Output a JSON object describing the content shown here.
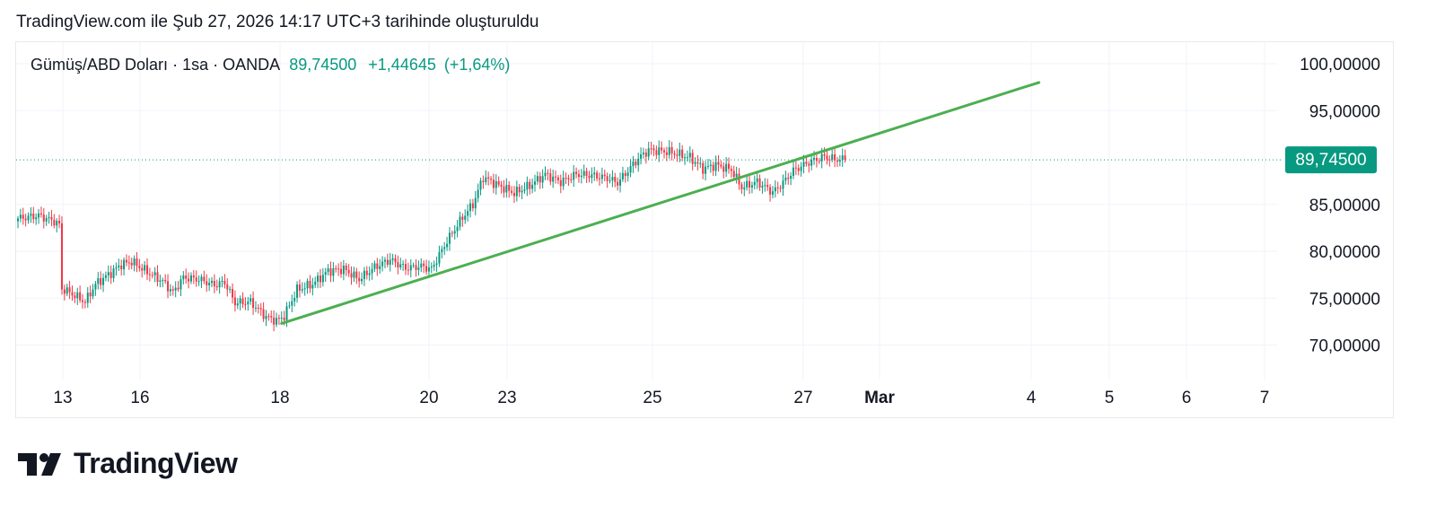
{
  "header": {
    "created_text": "TradingView.com ile Şub 27, 2026 14:17 UTC+3 tarihinde oluşturuldu"
  },
  "symbol": {
    "name": "Gümüş/ABD Doları",
    "interval": "1sa",
    "source": "OANDA",
    "separator": "·",
    "last_price": "89,74500",
    "change": "+1,44645",
    "change_percent": "(+1,64%)"
  },
  "footer": {
    "brand": "TradingView"
  },
  "colors": {
    "up": "#089981",
    "down": "#f23645",
    "trendline": "#4caf50",
    "price_line": "#089981"
  },
  "chart_data": {
    "type": "candlestick",
    "title": "Gümüş/ABD Doları · 1sa · OANDA",
    "x_ticks": [
      "13",
      "16",
      "18",
      "20",
      "23",
      "25",
      "27",
      "Mar",
      "4",
      "5",
      "6",
      "7"
    ],
    "y_ticks": [
      "100,00000",
      "95,00000",
      "85,00000",
      "80,00000",
      "75,00000",
      "70,00000"
    ],
    "ylim": [
      67.5,
      102.5
    ],
    "current_price": 89.745,
    "current_price_label": "89,74500",
    "grid": true,
    "path": [
      [
        0,
        83.5
      ],
      [
        8,
        83.8
      ],
      [
        14,
        83.2
      ],
      [
        16,
        82.8
      ],
      [
        17,
        76.0
      ],
      [
        20,
        75.6
      ],
      [
        26,
        74.6
      ],
      [
        30,
        76.5
      ],
      [
        36,
        77.7
      ],
      [
        40,
        78.6
      ],
      [
        44,
        78.9
      ],
      [
        50,
        77.8
      ],
      [
        56,
        76.8
      ],
      [
        60,
        75.6
      ],
      [
        64,
        77.2
      ],
      [
        70,
        77.0
      ],
      [
        76,
        76.4
      ],
      [
        80,
        76.7
      ],
      [
        84,
        74.5
      ],
      [
        90,
        74.6
      ],
      [
        96,
        73.0
      ],
      [
        100,
        72.6
      ],
      [
        103,
        73.1
      ],
      [
        108,
        75.9
      ],
      [
        114,
        76.5
      ],
      [
        120,
        77.9
      ],
      [
        126,
        78.1
      ],
      [
        132,
        77.0
      ],
      [
        138,
        78.3
      ],
      [
        144,
        79.1
      ],
      [
        150,
        78.2
      ],
      [
        156,
        78.4
      ],
      [
        160,
        78.1
      ],
      [
        166,
        81.1
      ],
      [
        172,
        83.6
      ],
      [
        176,
        85.0
      ],
      [
        180,
        87.9
      ],
      [
        186,
        87.0
      ],
      [
        192,
        86.2
      ],
      [
        198,
        87.0
      ],
      [
        204,
        88.2
      ],
      [
        210,
        87.4
      ],
      [
        216,
        88.2
      ],
      [
        222,
        88.1
      ],
      [
        228,
        87.8
      ],
      [
        232,
        87.3
      ],
      [
        236,
        88.6
      ],
      [
        240,
        89.9
      ],
      [
        244,
        90.8
      ],
      [
        252,
        90.6
      ],
      [
        260,
        90.0
      ],
      [
        265,
        88.8
      ],
      [
        270,
        89.2
      ],
      [
        276,
        88.7
      ],
      [
        280,
        86.8
      ],
      [
        286,
        87.4
      ],
      [
        292,
        86.3
      ],
      [
        296,
        87.3
      ],
      [
        300,
        88.6
      ],
      [
        306,
        89.5
      ],
      [
        312,
        90.1
      ],
      [
        316,
        89.8
      ],
      [
        320,
        89.745
      ]
    ],
    "trendline": [
      [
        102,
        72.3
      ],
      [
        395,
        98.0
      ]
    ]
  }
}
